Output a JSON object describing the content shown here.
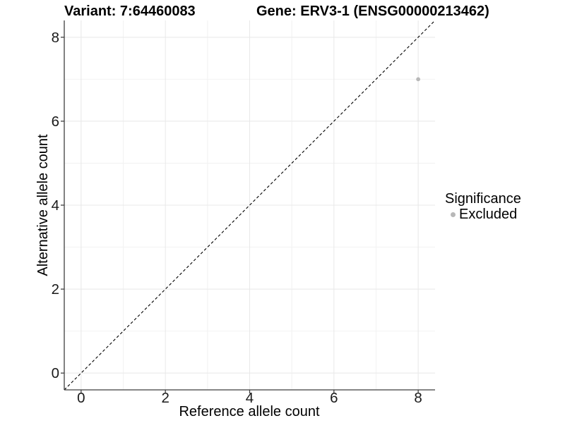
{
  "chart_data": {
    "type": "scatter",
    "titles": [
      "Variant: 7:64460083",
      "Gene: ERV3-1 (ENSG00000213462)"
    ],
    "xlabel": "Reference allele count",
    "ylabel": "Alternative allele count",
    "xlim": [
      -0.4,
      8.4
    ],
    "ylim": [
      -0.4,
      8.4
    ],
    "xticks": [
      0,
      2,
      4,
      6,
      8
    ],
    "yticks": [
      0,
      2,
      4,
      6,
      8
    ],
    "xminor": [
      1,
      3,
      5,
      7
    ],
    "yminor": [
      1,
      3,
      5,
      7
    ],
    "grid": "on",
    "legend_position": "right",
    "legend_title": "Significance",
    "series": [
      {
        "name": "Excluded",
        "color": "#b8b8b8",
        "points": [
          [
            8,
            7
          ]
        ]
      }
    ],
    "reference_line": {
      "equation": "y = x",
      "style": "dashed",
      "color": "#000000"
    }
  },
  "style": {
    "background": "#ffffff",
    "axis_line": "#3f3f3f",
    "grid_major": "#e8e8e8",
    "grid_minor": "#f2f2f2",
    "tick_text": "#1a1a1a",
    "point_radius": 2.9
  }
}
